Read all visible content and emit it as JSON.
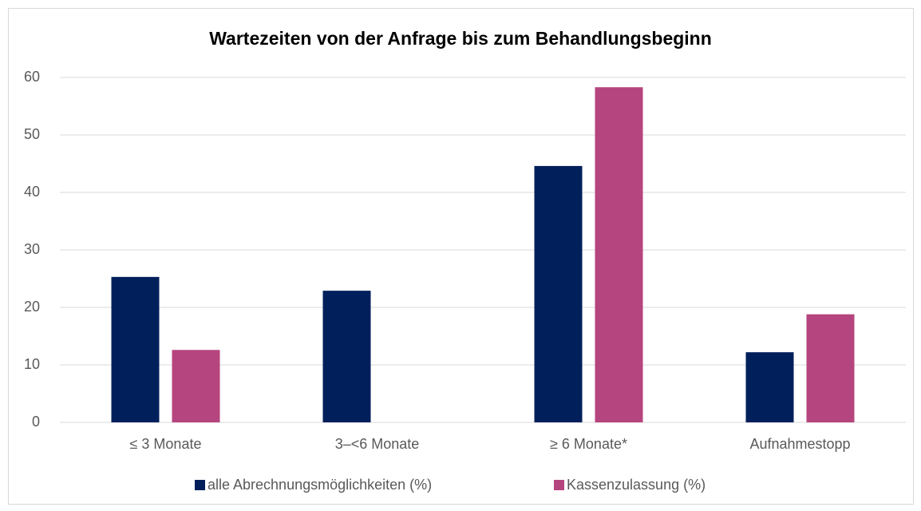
{
  "chart_data": {
    "type": "bar",
    "title": "Wartezeiten von der Anfrage bis zum Behandlungsbeginn",
    "categories": [
      "≤ 3 Monate",
      "3–<6 Monate",
      "≥ 6 Monate*",
      "Aufnahmestopp"
    ],
    "series": [
      {
        "name": "alle Abrechnungsmöglichkeiten (%)",
        "color": "#001f5b",
        "values": [
          25.3,
          22.9,
          44.6,
          12.2
        ]
      },
      {
        "name": "Kassenzulassung (%)",
        "color": "#b5457e",
        "values": [
          12.6,
          0,
          58.3,
          18.8
        ]
      }
    ],
    "ylim": [
      0,
      60
    ],
    "yticks": [
      0,
      10,
      20,
      30,
      40,
      50,
      60
    ],
    "grid": true,
    "legend": "bottom"
  }
}
